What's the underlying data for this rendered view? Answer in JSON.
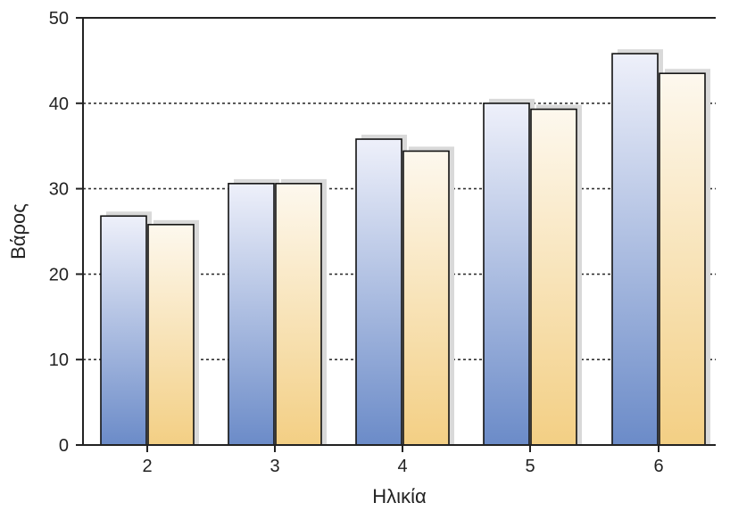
{
  "chart_data": {
    "type": "bar",
    "xlabel": "Ηλικία",
    "ylabel": "Βάρος",
    "categories": [
      "2",
      "3",
      "4",
      "5",
      "6"
    ],
    "series": [
      {
        "values": [
          26.8,
          30.6,
          35.8,
          40.0,
          45.8
        ]
      },
      {
        "values": [
          25.8,
          30.6,
          34.4,
          39.3,
          43.5
        ]
      }
    ],
    "ylim": [
      0,
      50
    ],
    "yticks": [
      "0",
      "10",
      "20",
      "30",
      "40",
      "50"
    ],
    "grid": "dotted horizontal at 10, 20, 30, 40",
    "colors": {
      "series1_top": "#eef0fa",
      "series1_bottom": "#6b8bc8",
      "series2_top": "#fdf8ee",
      "series2_bottom": "#f3cf84",
      "shadow": "#d9d9d9",
      "axis": "#222222"
    }
  }
}
